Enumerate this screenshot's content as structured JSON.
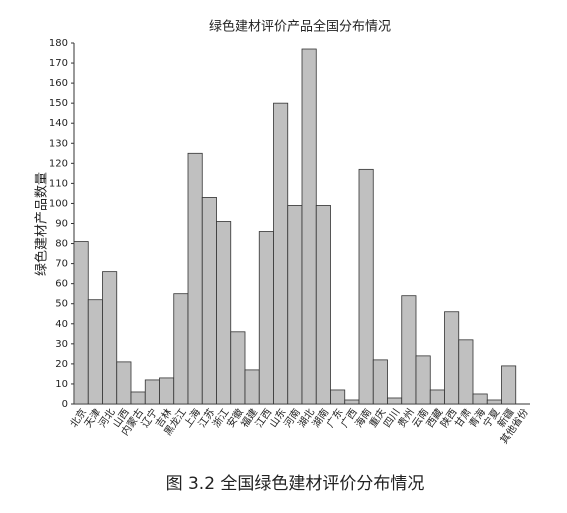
{
  "chart_data": {
    "type": "bar",
    "title": "绿色建材评价产品全国分布情况",
    "y_label": "绿色建材产品数量",
    "caption": "图 3.2  全国绿色建材评价分布情况",
    "categories": [
      "北京",
      "天津",
      "河北",
      "山西",
      "内蒙古",
      "辽宁",
      "吉林",
      "黑龙江",
      "上海",
      "江苏",
      "浙江",
      "安徽",
      "福建",
      "江西",
      "山东",
      "河南",
      "湖北",
      "湖南",
      "广东",
      "广西",
      "海南",
      "重庆",
      "四川",
      "贵州",
      "云南",
      "西藏",
      "陕西",
      "甘肃",
      "青海",
      "宁夏",
      "新疆",
      "其他省份"
    ],
    "values": [
      81,
      52,
      66,
      21,
      6,
      12,
      13,
      55,
      125,
      103,
      91,
      36,
      17,
      86,
      150,
      99,
      177,
      99,
      7,
      2,
      117,
      22,
      3,
      54,
      24,
      7,
      46,
      32,
      5,
      2,
      19,
      0
    ],
    "color": "#c0c0c0",
    "ylim": [
      0,
      180
    ],
    "yticks": [
      0,
      10,
      20,
      30,
      40,
      50,
      60,
      70,
      80,
      90,
      100,
      110,
      120,
      130,
      140,
      150,
      160,
      170,
      180
    ],
    "grid": false
  }
}
